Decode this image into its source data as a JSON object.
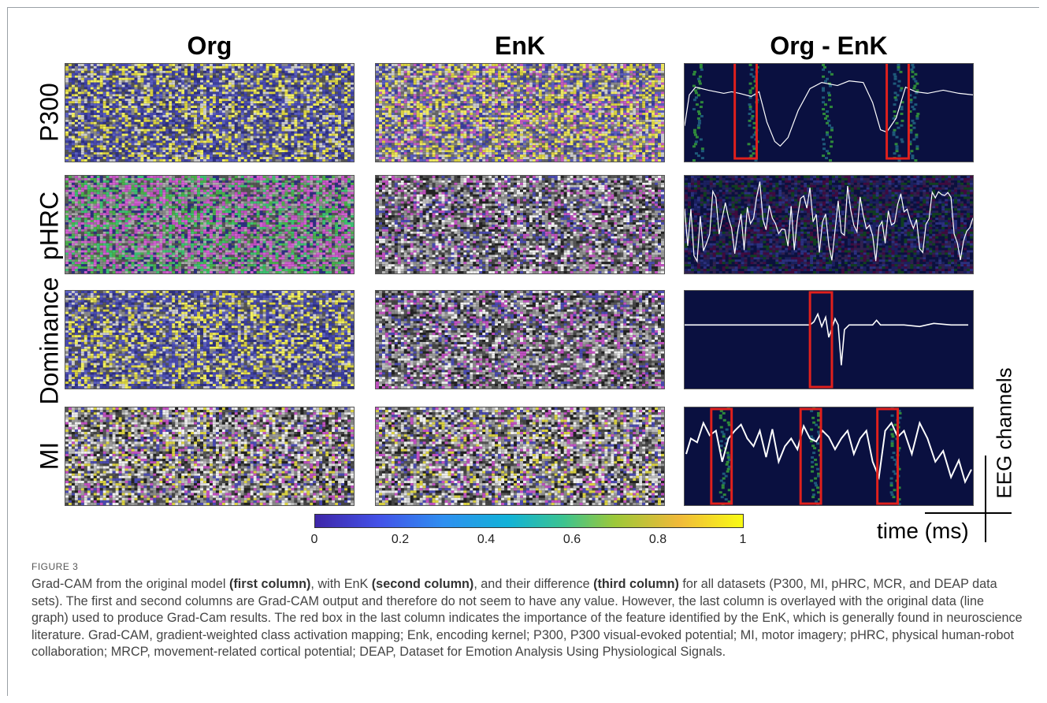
{
  "columns": [
    "Org",
    "EnK",
    "Org - EnK"
  ],
  "rows": [
    "P300",
    "pHRC",
    "Dominance",
    "MI"
  ],
  "colorbar": {
    "ticks": [
      "0",
      "0.2",
      "0.4",
      "0.6",
      "0.8",
      "1"
    ],
    "min": 0,
    "max": 1
  },
  "axes": {
    "time_label": "time (ms)",
    "channel_label": "EEG channels"
  },
  "figure_label": "FIGURE 3",
  "caption": {
    "p1": "Grad-CAM from the original model ",
    "b1": "(first column)",
    "p2": ", with EnK ",
    "b2": "(second column)",
    "p3": ", and their difference ",
    "b3": "(third column)",
    "p4": " for all datasets (P300, MI, pHRC, MCR, and DEAP data sets). The first and second columns are Grad-CAM output and therefore do not seem to have any value. However, the last column is overlayed with the original data (line graph) used to produce Grad-Cam results. The red box in the last column indicates the importance of the feature identified by the EnK, which is generally found in neuroscience literature. Grad-CAM, gradient-weighted class activation mapping; Enk, encoding kernel; P300, P300 visual-evoked potential; MI, motor imagery; pHRC, physical human-robot collaboration; MRCP, movement-related cortical potential; DEAP, Dataset for Emotion Analysis Using Physiological Signals."
  },
  "colors": {
    "highlight_box": "#e0201c",
    "overlay_line": "#ffffff",
    "dark_bg": "#0a1040"
  }
}
